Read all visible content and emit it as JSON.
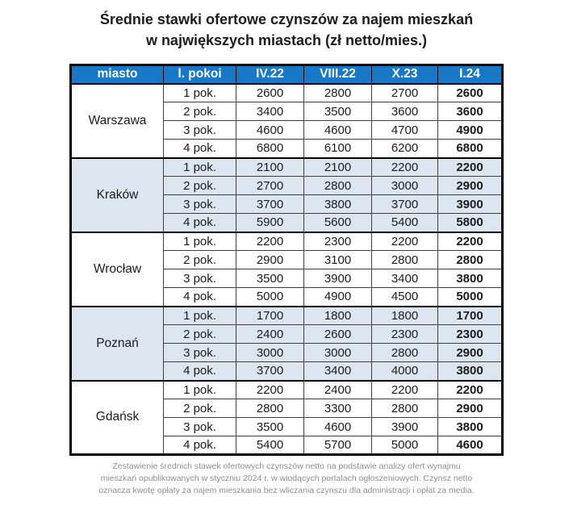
{
  "title": {
    "line1": "Średnie stawki ofertowe czynszów za najem mieszkań",
    "line2": "w największych miastach (zł netto/mies.)"
  },
  "table": {
    "headers": [
      "miasto",
      "l. pokoi",
      "IV.22",
      "VIII.22",
      "X.23",
      "I.24"
    ],
    "cities": [
      {
        "name": "Warszawa",
        "shaded": false,
        "rows": [
          {
            "rooms": "1 pok.",
            "values": [
              "2600",
              "2800",
              "2700",
              "2600"
            ]
          },
          {
            "rooms": "2 pok.",
            "values": [
              "3400",
              "3500",
              "3600",
              "3600"
            ]
          },
          {
            "rooms": "3 pok.",
            "values": [
              "4600",
              "4600",
              "4700",
              "4900"
            ]
          },
          {
            "rooms": "4 pok.",
            "values": [
              "6800",
              "6100",
              "6200",
              "6800"
            ]
          }
        ]
      },
      {
        "name": "Kraków",
        "shaded": true,
        "rows": [
          {
            "rooms": "1 pok.",
            "values": [
              "2100",
              "2100",
              "2200",
              "2200"
            ]
          },
          {
            "rooms": "2 pok.",
            "values": [
              "2700",
              "2800",
              "3000",
              "2900"
            ]
          },
          {
            "rooms": "3 pok.",
            "values": [
              "3700",
              "3800",
              "3700",
              "3900"
            ]
          },
          {
            "rooms": "4 pok.",
            "values": [
              "5900",
              "5600",
              "5400",
              "5800"
            ]
          }
        ]
      },
      {
        "name": "Wrocław",
        "shaded": false,
        "rows": [
          {
            "rooms": "1 pok.",
            "values": [
              "2200",
              "2300",
              "2200",
              "2200"
            ]
          },
          {
            "rooms": "2 pok.",
            "values": [
              "2900",
              "3100",
              "2800",
              "2800"
            ]
          },
          {
            "rooms": "3 pok.",
            "values": [
              "3500",
              "3900",
              "3400",
              "3800"
            ]
          },
          {
            "rooms": "4 pok.",
            "values": [
              "5000",
              "4900",
              "4500",
              "5000"
            ]
          }
        ]
      },
      {
        "name": "Poznań",
        "shaded": true,
        "rows": [
          {
            "rooms": "1 pok.",
            "values": [
              "1700",
              "1800",
              "1800",
              "1700"
            ]
          },
          {
            "rooms": "2 pok.",
            "values": [
              "2400",
              "2600",
              "2300",
              "2300"
            ]
          },
          {
            "rooms": "3 pok.",
            "values": [
              "3000",
              "3000",
              "2800",
              "2900"
            ]
          },
          {
            "rooms": "4 pok.",
            "values": [
              "3700",
              "3400",
              "4000",
              "3800"
            ]
          }
        ]
      },
      {
        "name": "Gdańsk",
        "shaded": false,
        "rows": [
          {
            "rooms": "1 pok.",
            "values": [
              "2200",
              "2400",
              "2200",
              "2200"
            ]
          },
          {
            "rooms": "2 pok.",
            "values": [
              "2800",
              "3300",
              "2800",
              "2900"
            ]
          },
          {
            "rooms": "3 pok.",
            "values": [
              "3500",
              "4600",
              "3900",
              "3800"
            ]
          },
          {
            "rooms": "4 pok.",
            "values": [
              "5400",
              "5700",
              "5000",
              "4600"
            ]
          }
        ]
      }
    ]
  },
  "footer": {
    "lines": [
      "Zestawienie średnich stawek ofertowych czynszów netto na podstawie analizy ofert wynajmu",
      "mieszkań opublikowanych w styczniu 2024 r. w wiodących portalach ogłoszeniowych. Czynsz netto",
      "oznacza kwotę opłaty za najem mieszkania bez wliczania czynszu dla administracji i opłat za media."
    ]
  },
  "colors": {
    "header_bg": "#1878C8",
    "header_text": "#FFFFFF",
    "shaded_row_bg": "#DCE6F1",
    "grid_line": "#3F3F3F",
    "heavy_line": "#000000",
    "text": "#1C1C1C",
    "footer_text": "#8F8F8F"
  },
  "chart_data": {
    "type": "table",
    "title": "Średnie stawki ofertowe czynszów za najem mieszkań w największych miastach (zł netto/mies.)",
    "columns": [
      "miasto",
      "l. pokoi",
      "IV.22",
      "VIII.22",
      "X.23",
      "I.24"
    ],
    "rows": [
      [
        "Warszawa",
        "1 pok.",
        2600,
        2800,
        2700,
        2600
      ],
      [
        "Warszawa",
        "2 pok.",
        3400,
        3500,
        3600,
        3600
      ],
      [
        "Warszawa",
        "3 pok.",
        4600,
        4600,
        4700,
        4900
      ],
      [
        "Warszawa",
        "4 pok.",
        6800,
        6100,
        6200,
        6800
      ],
      [
        "Kraków",
        "1 pok.",
        2100,
        2100,
        2200,
        2200
      ],
      [
        "Kraków",
        "2 pok.",
        2700,
        2800,
        3000,
        2900
      ],
      [
        "Kraków",
        "3 pok.",
        3700,
        3800,
        3700,
        3900
      ],
      [
        "Kraków",
        "4 pok.",
        5900,
        5600,
        5400,
        5800
      ],
      [
        "Wrocław",
        "1 pok.",
        2200,
        2300,
        2200,
        2200
      ],
      [
        "Wrocław",
        "2 pok.",
        2900,
        3100,
        2800,
        2800
      ],
      [
        "Wrocław",
        "3 pok.",
        3500,
        3900,
        3400,
        3800
      ],
      [
        "Wrocław",
        "4 pok.",
        5000,
        4900,
        4500,
        5000
      ],
      [
        "Poznań",
        "1 pok.",
        1700,
        1800,
        1800,
        1700
      ],
      [
        "Poznań",
        "2 pok.",
        2400,
        2600,
        2300,
        2300
      ],
      [
        "Poznań",
        "3 pok.",
        3000,
        3000,
        2800,
        2900
      ],
      [
        "Poznań",
        "4 pok.",
        3700,
        3400,
        4000,
        3800
      ],
      [
        "Gdańsk",
        "1 pok.",
        2200,
        2400,
        2200,
        2200
      ],
      [
        "Gdańsk",
        "2 pok.",
        2800,
        3300,
        2800,
        2900
      ],
      [
        "Gdańsk",
        "3 pok.",
        3500,
        4600,
        3900,
        3800
      ],
      [
        "Gdańsk",
        "4 pok.",
        5400,
        5700,
        5000,
        4600
      ]
    ],
    "footnote": "Zestawienie średnich stawek ofertowych czynszów netto na podstawie analizy ofert wynajmu mieszkań opublikowanych w styczniu 2024 r. w wiodących portalach ogłoszeniowych. Czynsz netto oznacza kwotę opłaty za najem mieszkania bez wliczania czynszu dla administracji i opłat za media."
  }
}
